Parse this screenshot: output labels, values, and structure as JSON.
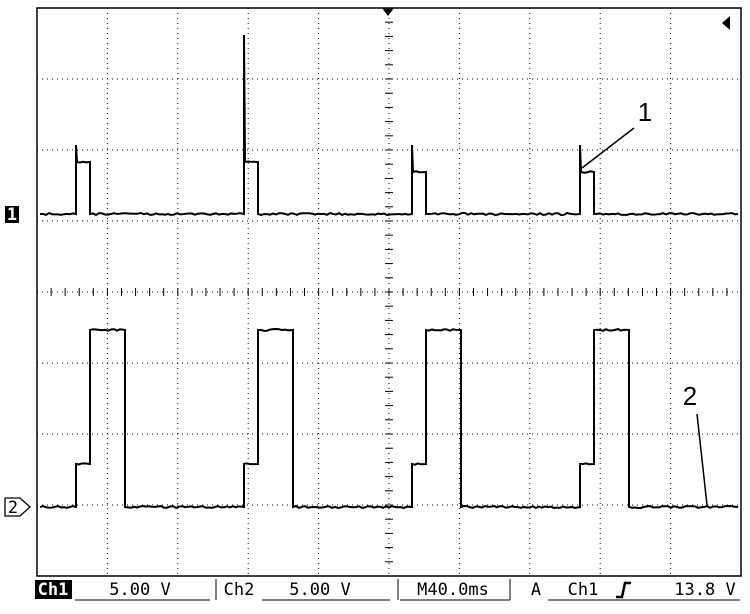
{
  "annotations": [
    "1",
    "2"
  ],
  "channel_markers": [
    "1",
    "2"
  ],
  "status_bar": {
    "ch1_label": "Ch1",
    "ch1_scale": "5.00 V",
    "ch2_label": "Ch2",
    "ch2_scale": "5.00 V",
    "timebase": "M40.0ms",
    "trigger_mode": "A",
    "trigger_source": "Ch1",
    "trigger_level": "13.8 V"
  }
}
